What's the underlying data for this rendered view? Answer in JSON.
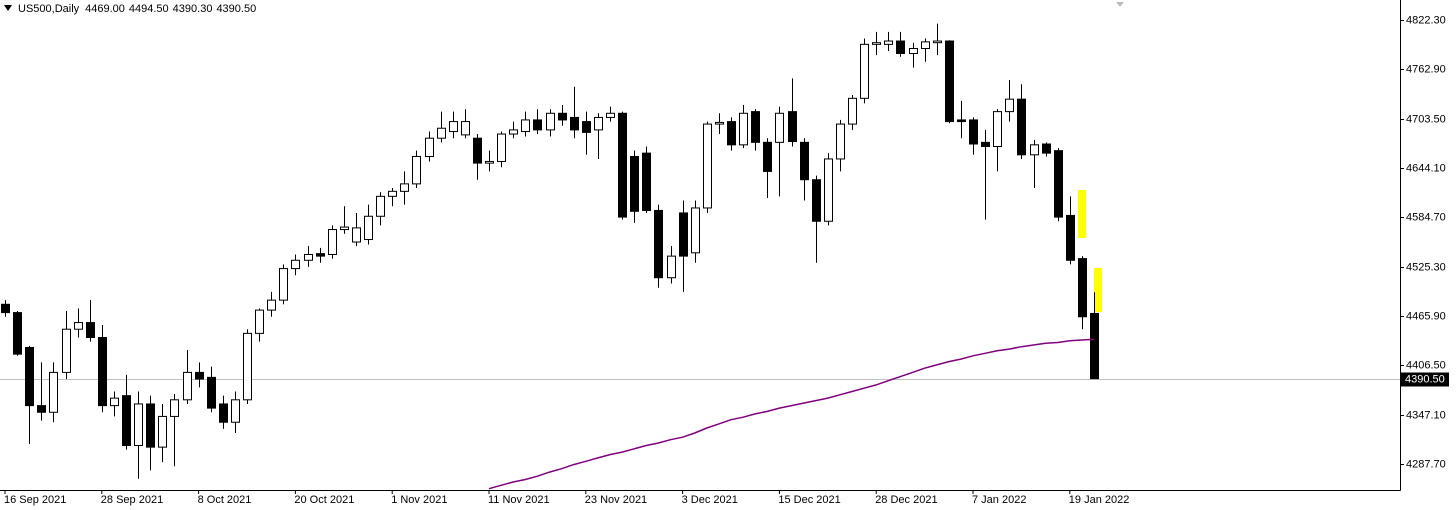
{
  "chart_data": {
    "type": "candlestick",
    "title": "US500,Daily",
    "ohlc_labels": [
      "4469.00",
      "4494.50",
      "4390.30",
      "4390.50"
    ],
    "categories": [
      "16 Sep 2021",
      null,
      null,
      null,
      null,
      null,
      null,
      null,
      "28 Sep 2021",
      null,
      null,
      null,
      null,
      null,
      null,
      null,
      "8 Oct 2021",
      null,
      null,
      null,
      null,
      null,
      null,
      null,
      "20 Oct 2021",
      null,
      null,
      null,
      null,
      null,
      null,
      null,
      "1 Nov 2021",
      null,
      null,
      null,
      null,
      null,
      null,
      null,
      "11 Nov 2021",
      null,
      null,
      null,
      null,
      null,
      null,
      null,
      "23 Nov 2021",
      null,
      null,
      null,
      null,
      null,
      null,
      null,
      "3 Dec 2021",
      null,
      null,
      null,
      null,
      null,
      null,
      null,
      "15 Dec 2021",
      null,
      null,
      null,
      null,
      null,
      null,
      null,
      "28 Dec 2021",
      null,
      null,
      null,
      null,
      null,
      null,
      null,
      "7 Jan 2022",
      null,
      null,
      null,
      null,
      null,
      null,
      null,
      "19 Jan 2022",
      null,
      null
    ],
    "open": [
      4480,
      4470,
      4428,
      4358,
      4350,
      4398,
      4450,
      4458,
      4440,
      4358,
      4370,
      4310,
      4360,
      4308,
      4345,
      4365,
      4398,
      4392,
      4360,
      4338,
      4365,
      4445,
      4473,
      4485,
      4523,
      4533,
      4541,
      4540,
      4570,
      4555,
      4558,
      4586,
      4610,
      4616,
      4625,
      4658,
      4680,
      4688,
      4684,
      4680,
      4650,
      4652,
      4685,
      4688,
      4702,
      4690,
      4710,
      4705,
      4700,
      4690,
      4705,
      4710,
      4658,
      4662,
      4593,
      4512,
      4590,
      4542,
      4596,
      4697,
      4700,
      4672,
      4712,
      4675,
      4675,
      4712,
      4675,
      4630,
      4580,
      4655,
      4697,
      4728,
      4793,
      4793,
      4797,
      4782,
      4788,
      4795,
      4797,
      4702,
      4702,
      4675,
      4670,
      4712,
      4727,
      4660,
      4673,
      4665,
      4587,
      4535,
      4469
    ],
    "high": [
      4485,
      4472,
      4430,
      4410,
      4410,
      4472,
      4475,
      4485,
      4455,
      4375,
      4395,
      4375,
      4370,
      4360,
      4372,
      4425,
      4410,
      4405,
      4370,
      4375,
      4450,
      4475,
      4495,
      4528,
      4540,
      4550,
      4548,
      4575,
      4598,
      4590,
      4600,
      4615,
      4620,
      4640,
      4665,
      4688,
      4712,
      4712,
      4715,
      4685,
      4665,
      4688,
      4700,
      4712,
      4715,
      4715,
      4720,
      4742,
      4712,
      4710,
      4718,
      4712,
      4665,
      4670,
      4600,
      4550,
      4605,
      4605,
      4700,
      4710,
      4705,
      4720,
      4715,
      4680,
      4718,
      4752,
      4680,
      4635,
      4662,
      4702,
      4732,
      4800,
      4808,
      4808,
      4808,
      4795,
      4800,
      4818,
      4798,
      4725,
      4705,
      4690,
      4715,
      4750,
      4745,
      4678,
      4675,
      4668,
      4610,
      4538,
      4494.5
    ],
    "low": [
      4465,
      4418,
      4312,
      4340,
      4338,
      4390,
      4440,
      4435,
      4350,
      4345,
      4305,
      4270,
      4280,
      4290,
      4285,
      4360,
      4380,
      4350,
      4330,
      4325,
      4360,
      4435,
      4465,
      4480,
      4515,
      4525,
      4530,
      4535,
      4565,
      4550,
      4552,
      4575,
      4598,
      4600,
      4620,
      4652,
      4675,
      4680,
      4680,
      4630,
      4640,
      4645,
      4680,
      4682,
      4685,
      4682,
      4695,
      4680,
      4660,
      4655,
      4700,
      4582,
      4578,
      4590,
      4500,
      4505,
      4495,
      4530,
      4590,
      4685,
      4665,
      4668,
      4665,
      4608,
      4610,
      4670,
      4605,
      4530,
      4575,
      4640,
      4690,
      4722,
      4780,
      4785,
      4778,
      4765,
      4772,
      4780,
      4698,
      4680,
      4660,
      4582,
      4640,
      4700,
      4655,
      4620,
      4658,
      4580,
      4528,
      4450,
      4390.3
    ],
    "close": [
      4470,
      4420,
      4358,
      4350,
      4398,
      4450,
      4458,
      4440,
      4358,
      4367,
      4310,
      4360,
      4308,
      4345,
      4365,
      4398,
      4390,
      4355,
      4338,
      4365,
      4445,
      4473,
      4485,
      4523,
      4533,
      4540,
      4538,
      4570,
      4573,
      4572,
      4586,
      4610,
      4616,
      4625,
      4658,
      4680,
      4692,
      4700,
      4700,
      4650,
      4652,
      4685,
      4690,
      4702,
      4690,
      4710,
      4702,
      4690,
      4687,
      4705,
      4710,
      4585,
      4592,
      4593,
      4512,
      4538,
      4538,
      4596,
      4697,
      4699,
      4672,
      4710,
      4675,
      4640,
      4710,
      4676,
      4630,
      4580,
      4655,
      4697,
      4728,
      4793,
      4795,
      4797,
      4782,
      4788,
      4796,
      4797,
      4700,
      4700,
      4673,
      4670,
      4712,
      4727,
      4660,
      4672,
      4662,
      4585,
      4533,
      4465,
      4390.5
    ],
    "up_color": "#ffffff",
    "down_color": "#000000",
    "ma": {
      "color": "#800080",
      "values": [
        null,
        null,
        null,
        null,
        null,
        null,
        null,
        null,
        null,
        null,
        null,
        null,
        null,
        null,
        null,
        null,
        null,
        null,
        null,
        null,
        null,
        null,
        null,
        null,
        null,
        null,
        null,
        null,
        null,
        null,
        null,
        null,
        null,
        null,
        null,
        null,
        null,
        null,
        null,
        null,
        4258,
        4262,
        4266,
        4269,
        4273,
        4278,
        4282,
        4287,
        4291,
        4295,
        4299,
        4302,
        4306,
        4310,
        4313,
        4317,
        4320,
        4325,
        4331,
        4336,
        4341,
        4344,
        4348,
        4351,
        4355,
        4358,
        4361,
        4364,
        4367,
        4371,
        4375,
        4379,
        4383,
        4388,
        4393,
        4398,
        4403,
        4407,
        4411,
        4414,
        4418,
        4421,
        4424,
        4426,
        4429,
        4431,
        4433,
        4434,
        4436,
        4437,
        4438
      ]
    },
    "ylim": [
      4256.4,
      4846.4
    ],
    "yticks": [
      {
        "value": 4822.3,
        "label": "4822.30"
      },
      {
        "value": 4762.9,
        "label": "4762.90"
      },
      {
        "value": 4703.5,
        "label": "4703.50"
      },
      {
        "value": 4644.1,
        "label": "4644.10"
      },
      {
        "value": 4584.7,
        "label": "4584.70"
      },
      {
        "value": 4525.3,
        "label": "4525.30"
      },
      {
        "value": 4465.9,
        "label": "4465.90"
      },
      {
        "value": 4406.5,
        "label": "4406.50"
      },
      {
        "value": 4347.1,
        "label": "4347.10"
      },
      {
        "value": 4287.7,
        "label": "4287.70"
      }
    ],
    "last_price": {
      "value": 4390.5,
      "label": "4390.50"
    },
    "grid": false
  }
}
